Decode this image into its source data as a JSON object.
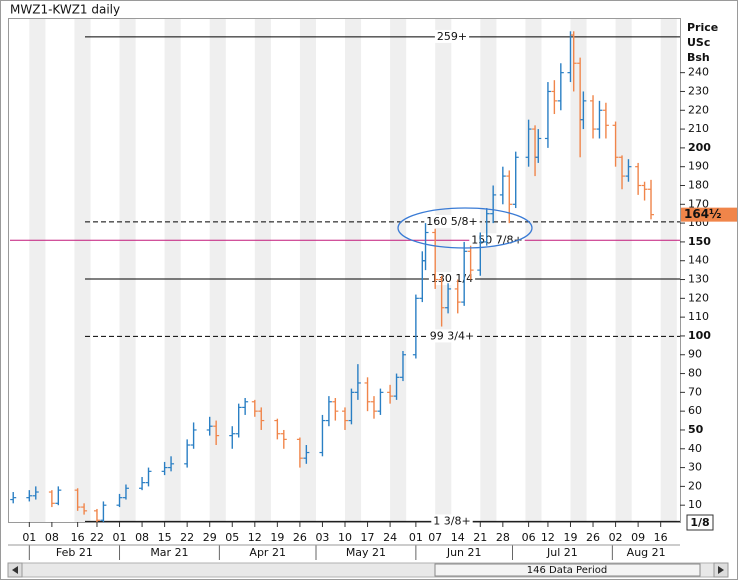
{
  "title": "MWZ1-KWZ1 daily",
  "chart_data": {
    "type": "ohlc",
    "axis_title": [
      "Price",
      "USc",
      "Bsh"
    ],
    "x": [
      "2021-01-27",
      "2021-02-01",
      "2021-02-03",
      "2021-02-08",
      "2021-02-10",
      "2021-02-16",
      "2021-02-18",
      "2021-02-22",
      "2021-02-24",
      "2021-03-01",
      "2021-03-03",
      "2021-03-08",
      "2021-03-10",
      "2021-03-15",
      "2021-03-17",
      "2021-03-22",
      "2021-03-24",
      "2021-03-29",
      "2021-03-31",
      "2021-04-05",
      "2021-04-07",
      "2021-04-09",
      "2021-04-12",
      "2021-04-14",
      "2021-04-19",
      "2021-04-21",
      "2021-04-26",
      "2021-04-28",
      "2021-05-03",
      "2021-05-05",
      "2021-05-07",
      "2021-05-10",
      "2021-05-12",
      "2021-05-14",
      "2021-05-17",
      "2021-05-19",
      "2021-05-21",
      "2021-05-24",
      "2021-05-26",
      "2021-05-28",
      "2021-06-01",
      "2021-06-03",
      "2021-06-04",
      "2021-06-07",
      "2021-06-09",
      "2021-06-11",
      "2021-06-14",
      "2021-06-16",
      "2021-06-18",
      "2021-06-21",
      "2021-06-23",
      "2021-06-25",
      "2021-06-28",
      "2021-06-30",
      "2021-07-02",
      "2021-07-06",
      "2021-07-08",
      "2021-07-09",
      "2021-07-12",
      "2021-07-14",
      "2021-07-16",
      "2021-07-19",
      "2021-07-20",
      "2021-07-22",
      "2021-07-23",
      "2021-07-26",
      "2021-07-28",
      "2021-07-30",
      "2021-08-02",
      "2021-08-04",
      "2021-08-06",
      "2021-08-09",
      "2021-08-11",
      "2021-08-13"
    ],
    "open": [
      13,
      14,
      15,
      17,
      11,
      18,
      9,
      7,
      2,
      10,
      14,
      19,
      22,
      28,
      30,
      32,
      42,
      50,
      52,
      47,
      48,
      62,
      65,
      60,
      55,
      48,
      45,
      35,
      38,
      55,
      65,
      60,
      55,
      70,
      75,
      65,
      60,
      70,
      68,
      78,
      90,
      120,
      140,
      155,
      130,
      115,
      125,
      118,
      145,
      135,
      150,
      165,
      175,
      185,
      170,
      195,
      210,
      195,
      205,
      230,
      225,
      240,
      260,
      245,
      215,
      225,
      210,
      220,
      212,
      195,
      185,
      190,
      180,
      178
    ],
    "high": [
      17,
      18,
      20,
      18,
      20,
      19,
      11,
      8,
      12,
      16,
      21,
      25,
      30,
      33,
      36,
      45,
      54,
      57,
      55,
      52,
      64,
      67,
      66,
      62,
      56,
      50,
      46,
      42,
      58,
      68,
      67,
      62,
      72,
      85,
      78,
      68,
      72,
      74,
      80,
      92,
      122,
      145,
      160,
      157,
      132,
      128,
      130,
      150,
      148,
      155,
      168,
      180,
      190,
      188,
      198,
      215,
      212,
      210,
      235,
      236,
      245,
      262,
      262,
      248,
      230,
      228,
      225,
      224,
      214,
      196,
      194,
      192,
      182,
      183
    ],
    "low": [
      11,
      12,
      13,
      9,
      10,
      7,
      5,
      1,
      1,
      9,
      13,
      18,
      20,
      26,
      28,
      30,
      40,
      47,
      42,
      40,
      46,
      58,
      57,
      50,
      45,
      40,
      30,
      32,
      36,
      52,
      55,
      50,
      53,
      66,
      60,
      56,
      58,
      64,
      66,
      76,
      88,
      118,
      135,
      125,
      105,
      112,
      112,
      116,
      130,
      132,
      148,
      160,
      170,
      160,
      168,
      190,
      185,
      192,
      200,
      218,
      220,
      235,
      230,
      195,
      210,
      205,
      205,
      205,
      190,
      178,
      182,
      175,
      172,
      162
    ],
    "close": [
      14,
      15,
      17,
      11,
      18,
      9,
      7,
      2,
      10,
      14,
      19,
      22,
      28,
      30,
      32,
      42,
      50,
      52,
      47,
      48,
      62,
      65,
      60,
      55,
      48,
      45,
      35,
      38,
      55,
      65,
      60,
      55,
      70,
      75,
      65,
      60,
      70,
      68,
      78,
      90,
      120,
      140,
      155,
      130,
      115,
      125,
      118,
      145,
      135,
      150,
      165,
      175,
      185,
      170,
      195,
      210,
      195,
      205,
      230,
      225,
      240,
      260,
      245,
      215,
      225,
      210,
      220,
      212,
      195,
      185,
      190,
      180,
      178,
      164.5
    ],
    "up_color": "#2a7fc4",
    "down_color": "#f0854a",
    "xlim": [
      "2021-01-26",
      "2021-08-22"
    ],
    "ylim": [
      0,
      268
    ],
    "yticks": [
      10,
      20,
      30,
      40,
      50,
      60,
      70,
      80,
      90,
      100,
      110,
      120,
      130,
      140,
      150,
      160,
      170,
      180,
      190,
      200,
      210,
      220,
      230,
      240
    ],
    "xticks": [
      {
        "value": "2021-02-01",
        "label": "01"
      },
      {
        "value": "2021-02-08",
        "label": "08"
      },
      {
        "value": "2021-02-16",
        "label": "16"
      },
      {
        "value": "2021-02-22",
        "label": "22"
      },
      {
        "value": "2021-03-01",
        "label": "01"
      },
      {
        "value": "2021-03-08",
        "label": "08"
      },
      {
        "value": "2021-03-15",
        "label": "15"
      },
      {
        "value": "2021-03-22",
        "label": "22"
      },
      {
        "value": "2021-03-29",
        "label": "29"
      },
      {
        "value": "2021-04-05",
        "label": "05"
      },
      {
        "value": "2021-04-12",
        "label": "12"
      },
      {
        "value": "2021-04-19",
        "label": "19"
      },
      {
        "value": "2021-04-26",
        "label": "26"
      },
      {
        "value": "2021-05-03",
        "label": "03"
      },
      {
        "value": "2021-05-10",
        "label": "10"
      },
      {
        "value": "2021-05-17",
        "label": "17"
      },
      {
        "value": "2021-05-24",
        "label": "24"
      },
      {
        "value": "2021-06-01",
        "label": "01"
      },
      {
        "value": "2021-06-07",
        "label": "07"
      },
      {
        "value": "2021-06-14",
        "label": "14"
      },
      {
        "value": "2021-06-21",
        "label": "21"
      },
      {
        "value": "2021-06-28",
        "label": "28"
      },
      {
        "value": "2021-07-06",
        "label": "06"
      },
      {
        "value": "2021-07-12",
        "label": "12"
      },
      {
        "value": "2021-07-19",
        "label": "19"
      },
      {
        "value": "2021-07-26",
        "label": "26"
      },
      {
        "value": "2021-08-02",
        "label": "02"
      },
      {
        "value": "2021-08-09",
        "label": "09"
      },
      {
        "value": "2021-08-16",
        "label": "16"
      }
    ],
    "month_ticks": [
      {
        "value": "2021-02",
        "label": "Feb 21"
      },
      {
        "value": "2021-03",
        "label": "Mar 21"
      },
      {
        "value": "2021-04",
        "label": "Apr 21"
      },
      {
        "value": "2021-05",
        "label": "May 21"
      },
      {
        "value": "2021-06",
        "label": "Jun 21"
      },
      {
        "value": "2021-07",
        "label": "Jul 21"
      },
      {
        "value": "2021-08",
        "label": "Aug 21"
      }
    ],
    "levels": [
      {
        "value": 259,
        "label": "259+",
        "color": "#000000",
        "dashed": false
      },
      {
        "value": 160.625,
        "label": "160 5/8+",
        "color": "#000000",
        "dashed": true
      },
      {
        "value": 150.875,
        "label": "150 7/8+",
        "color": "#c2187a",
        "dashed": false,
        "full_width": true
      },
      {
        "value": 130.25,
        "label": "130 1/4",
        "color": "#000000",
        "dashed": false
      },
      {
        "value": 99.75,
        "label": "99 3/4+",
        "color": "#000000",
        "dashed": true
      },
      {
        "value": 1.375,
        "label": "1 3/8+",
        "color": "#000000",
        "dashed": false
      }
    ],
    "last_price": {
      "value": 164.5,
      "label": "164½",
      "color": "#f0854a"
    }
  },
  "scale_fraction": "1/8",
  "scrollbar": {
    "label": "146 Data Period"
  }
}
